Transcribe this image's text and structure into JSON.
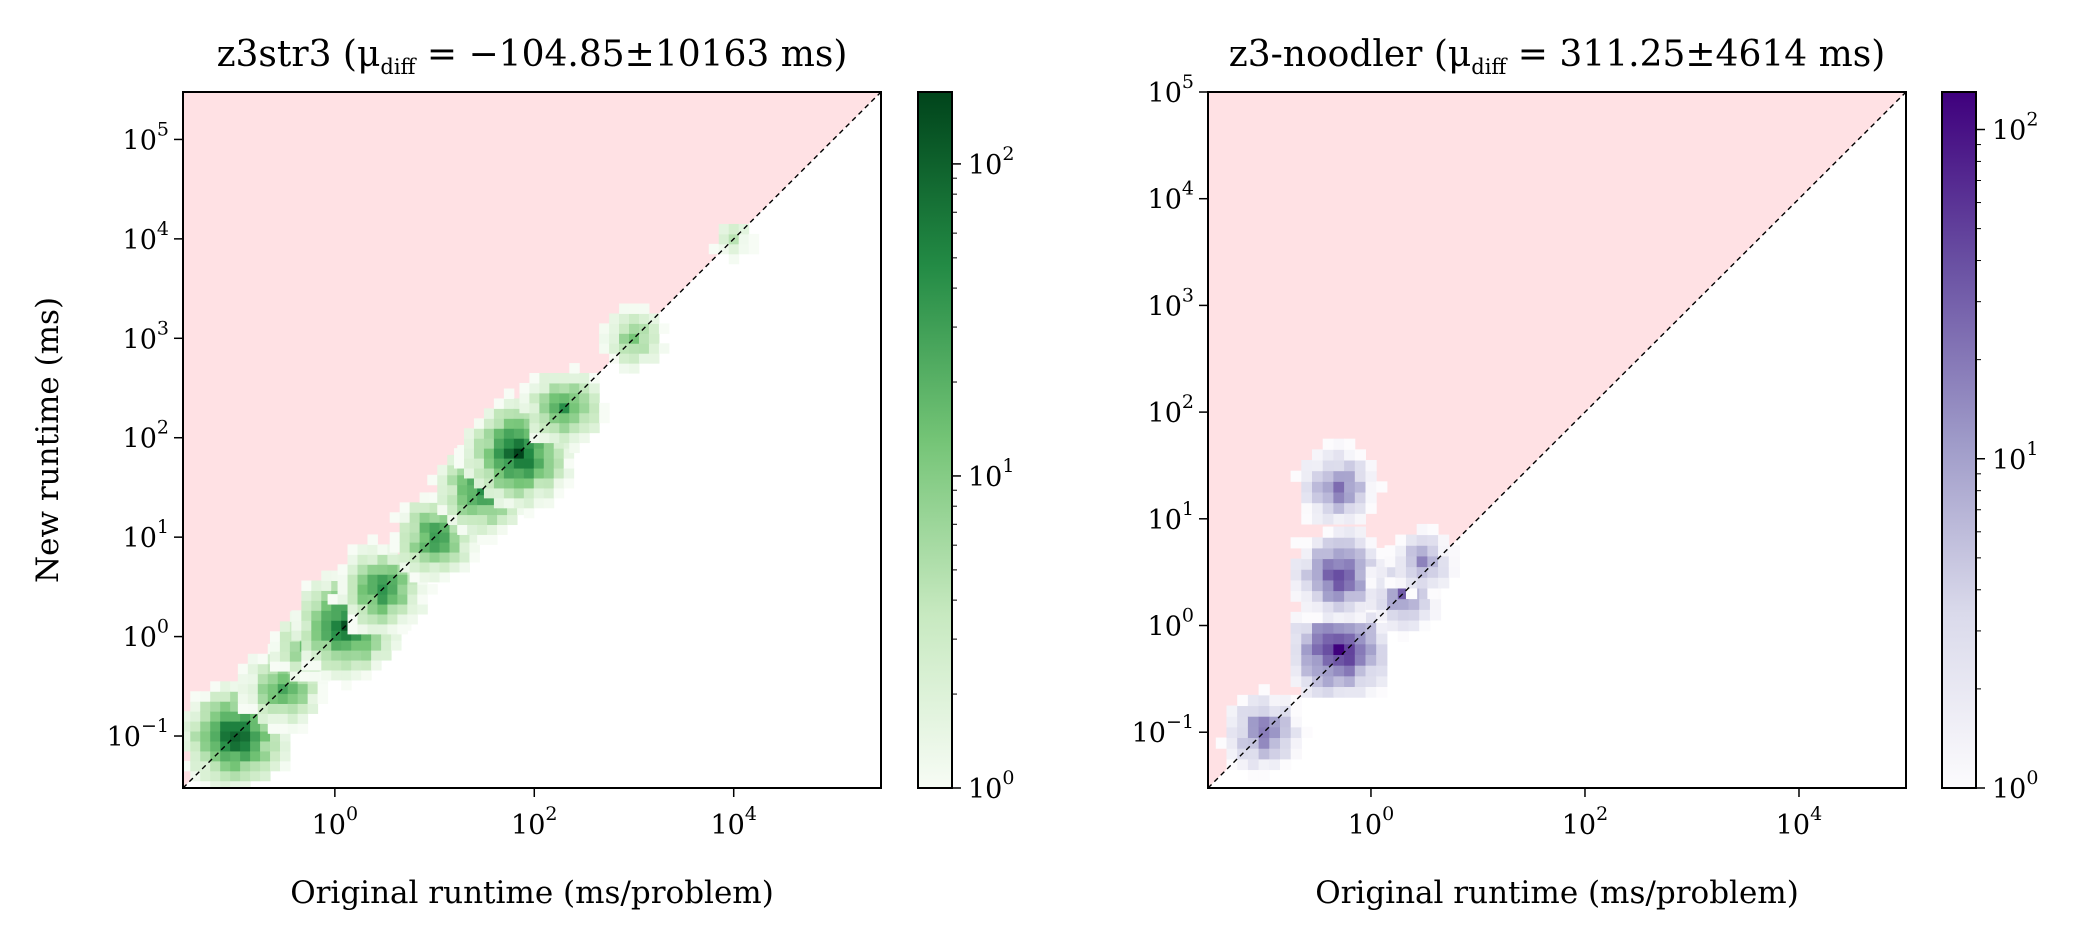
{
  "chart_data": [
    {
      "type": "heatmap",
      "title": "z3str3 (μ",
      "title_sub": "diff",
      "title_rest": " = −104.85±10163 ms)",
      "xlabel": "Original runtime (ms/problem)",
      "ylabel": "New runtime (ms)",
      "xscale": "log",
      "yscale": "log",
      "xlim": [
        0.03,
        300000
      ],
      "ylim": [
        0.03,
        300000
      ],
      "xticks": [
        {
          "value": 1,
          "base": "10",
          "exp": "0"
        },
        {
          "value": 100,
          "base": "10",
          "exp": "2"
        },
        {
          "value": 10000,
          "base": "10",
          "exp": "4"
        }
      ],
      "yticks": [
        {
          "value": 0.1,
          "base": "10",
          "exp": "−1"
        },
        {
          "value": 1,
          "base": "10",
          "exp": "0"
        },
        {
          "value": 10,
          "base": "10",
          "exp": "1"
        },
        {
          "value": 100,
          "base": "10",
          "exp": "2"
        },
        {
          "value": 1000,
          "base": "10",
          "exp": "3"
        },
        {
          "value": 10000,
          "base": "10",
          "exp": "4"
        },
        {
          "value": 100000,
          "base": "10",
          "exp": "5"
        }
      ],
      "colorbar": {
        "scale": "log",
        "range": [
          1,
          170
        ],
        "colors": [
          "#f7fcf5",
          "#c7e9c0",
          "#74c476",
          "#238b45",
          "#00441b"
        ],
        "ticks": [
          {
            "value": 1,
            "base": "10",
            "exp": "0"
          },
          {
            "value": 10,
            "base": "10",
            "exp": "1"
          },
          {
            "value": 100,
            "base": "10",
            "exp": "2"
          }
        ]
      },
      "slower_region_color": "#ffe1e4",
      "reference_line": "y = x",
      "points": [
        {
          "x": 0.1,
          "y": 0.1,
          "count": 150
        },
        {
          "x": 0.3,
          "y": 0.3,
          "count": 40
        },
        {
          "x": 0.5,
          "y": 0.8,
          "count": 20
        },
        {
          "x": 1.3,
          "y": 1.3,
          "count": 140
        },
        {
          "x": 3,
          "y": 3,
          "count": 60
        },
        {
          "x": 10,
          "y": 10,
          "count": 50
        },
        {
          "x": 30,
          "y": 30,
          "count": 70
        },
        {
          "x": 70,
          "y": 70,
          "count": 160
        },
        {
          "x": 200,
          "y": 200,
          "count": 40
        },
        {
          "x": 1000,
          "y": 1000,
          "count": 15
        },
        {
          "x": 10000,
          "y": 10000,
          "count": 5
        }
      ]
    },
    {
      "type": "heatmap",
      "title": "z3-noodler (μ",
      "title_sub": "diff",
      "title_rest": " = 311.25±4614 ms)",
      "xlabel": "Original runtime (ms/problem)",
      "ylabel": "",
      "xscale": "log",
      "yscale": "log",
      "xlim": [
        0.03,
        100000
      ],
      "ylim": [
        0.03,
        100000
      ],
      "xticks": [
        {
          "value": 1,
          "base": "10",
          "exp": "0"
        },
        {
          "value": 100,
          "base": "10",
          "exp": "2"
        },
        {
          "value": 10000,
          "base": "10",
          "exp": "4"
        }
      ],
      "yticks": [
        {
          "value": 0.1,
          "base": "10",
          "exp": "−1"
        },
        {
          "value": 1,
          "base": "10",
          "exp": "0"
        },
        {
          "value": 10,
          "base": "10",
          "exp": "1"
        },
        {
          "value": 100,
          "base": "10",
          "exp": "2"
        },
        {
          "value": 1000,
          "base": "10",
          "exp": "3"
        },
        {
          "value": 10000,
          "base": "10",
          "exp": "4"
        },
        {
          "value": 100000,
          "base": "10",
          "exp": "5"
        }
      ],
      "colorbar": {
        "scale": "log",
        "range": [
          1,
          130
        ],
        "colors": [
          "#fcfbfd",
          "#dadaeb",
          "#9e9ac8",
          "#6a51a3",
          "#3f007d"
        ],
        "ticks": [
          {
            "value": 1,
            "base": "10",
            "exp": "0"
          },
          {
            "value": 10,
            "base": "10",
            "exp": "1"
          },
          {
            "value": 100,
            "base": "10",
            "exp": "2"
          }
        ]
      },
      "slower_region_color": "#ffe1e4",
      "reference_line": "y = x",
      "points": [
        {
          "x": 0.1,
          "y": 0.1,
          "count": 30
        },
        {
          "x": 0.5,
          "y": 0.6,
          "count": 120
        },
        {
          "x": 0.5,
          "y": 3,
          "count": 60
        },
        {
          "x": 0.5,
          "y": 20,
          "count": 30
        },
        {
          "x": 2,
          "y": 2,
          "count": 25
        },
        {
          "x": 3,
          "y": 4,
          "count": 15
        }
      ]
    }
  ]
}
